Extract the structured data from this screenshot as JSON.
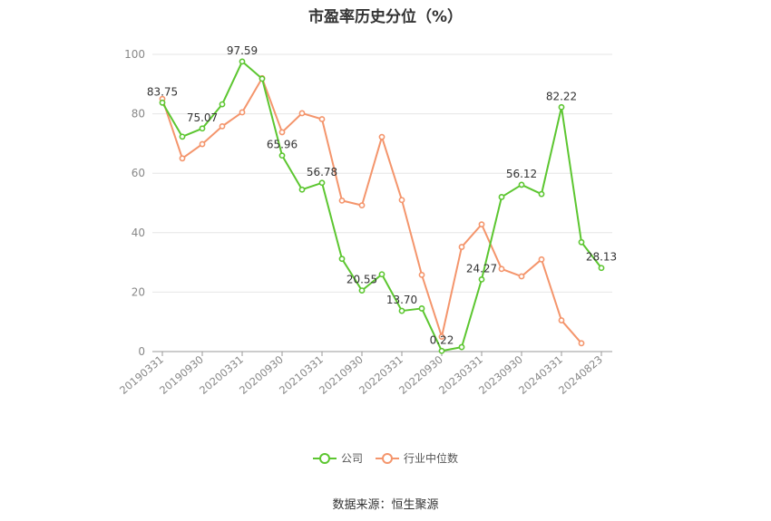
{
  "chart_data": {
    "type": "line",
    "title": "市盈率历史分位（%）",
    "categories": [
      "20190331",
      "20190630",
      "20190930",
      "20191231",
      "20200331",
      "20200630",
      "20200930",
      "20201231",
      "20210331",
      "20210630",
      "20210930",
      "20211231",
      "20220331",
      "20220630",
      "20220930",
      "20221231",
      "20230331",
      "20230630",
      "20230930",
      "20231231",
      "20240331",
      "20240630",
      "20240823"
    ],
    "x_tick_labels": [
      "20190331",
      "20190930",
      "20200331",
      "20200930",
      "20210331",
      "20210930",
      "20220331",
      "20220930",
      "20230331",
      "20230930",
      "20240331",
      "20240823"
    ],
    "y_ticks": [
      0,
      20,
      40,
      60,
      80,
      100
    ],
    "ylim": [
      0,
      100
    ],
    "grid": true,
    "legend_position": "bottom",
    "series": [
      {
        "name": "公司",
        "color": "#5cc630",
        "values": [
          83.75,
          72.3,
          75.07,
          83.2,
          97.59,
          91.8,
          65.96,
          54.5,
          56.78,
          31.2,
          20.55,
          26.0,
          13.7,
          14.5,
          0.22,
          1.5,
          24.27,
          52.0,
          56.12,
          53.0,
          82.22,
          36.8,
          28.13
        ],
        "data_labels": [
          "83.75",
          "",
          "75.07",
          "",
          "97.59",
          "",
          "65.96",
          "",
          "56.78",
          "",
          "20.55",
          "",
          "13.70",
          "",
          "0.22",
          "",
          "24.27",
          "",
          "56.12",
          "",
          "82.22",
          "",
          "28.13"
        ]
      },
      {
        "name": "行业中位数",
        "color": "#f4956c",
        "values": [
          85.0,
          65.0,
          69.8,
          75.8,
          80.5,
          92.0,
          73.8,
          80.2,
          78.2,
          50.8,
          49.2,
          72.2,
          51.0,
          25.8,
          5.0,
          35.2,
          42.8,
          27.8,
          25.3,
          31.0,
          10.5,
          2.8,
          null
        ]
      }
    ]
  },
  "legend": {
    "company_label": "公司",
    "industry_label": "行业中位数",
    "company_color": "#5cc630",
    "industry_color": "#f4956c"
  },
  "source": "数据来源：恒生聚源"
}
